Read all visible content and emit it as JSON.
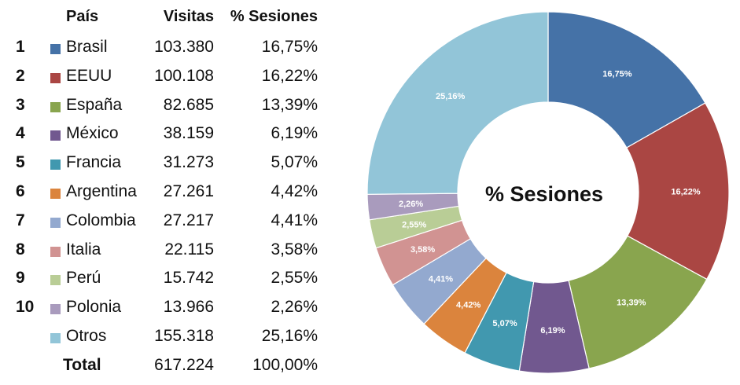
{
  "table": {
    "headers": {
      "country": "País",
      "visits": "Visitas",
      "sessions": "% Sesiones"
    },
    "rows": [
      {
        "rank": "1",
        "country": "Brasil",
        "visits": "103.380",
        "pct": "16,75%",
        "color": "#4572A7"
      },
      {
        "rank": "2",
        "country": "EEUU",
        "visits": "100.108",
        "pct": "16,22%",
        "color": "#AA4643"
      },
      {
        "rank": "3",
        "country": "España",
        "visits": "82.685",
        "pct": "13,39%",
        "color": "#89A54E"
      },
      {
        "rank": "4",
        "country": "México",
        "visits": "38.159",
        "pct": "6,19%",
        "color": "#71588F"
      },
      {
        "rank": "5",
        "country": "Francia",
        "visits": "31.273",
        "pct": "5,07%",
        "color": "#4198AF"
      },
      {
        "rank": "6",
        "country": "Argentina",
        "visits": "27.261",
        "pct": "4,42%",
        "color": "#DB843D"
      },
      {
        "rank": "7",
        "country": "Colombia",
        "visits": "27.217",
        "pct": "4,41%",
        "color": "#93A9CF"
      },
      {
        "rank": "8",
        "country": "Italia",
        "visits": "22.115",
        "pct": "3,58%",
        "color": "#D19392"
      },
      {
        "rank": "9",
        "country": "Perú",
        "visits": "15.742",
        "pct": "2,55%",
        "color": "#B9CD96"
      },
      {
        "rank": "10",
        "country": "Polonia",
        "visits": "13.966",
        "pct": "2,26%",
        "color": "#A99BBD"
      },
      {
        "rank": "",
        "country": "Otros",
        "visits": "155.318",
        "pct": "25,16%",
        "color": "#92C5D8"
      }
    ],
    "total": {
      "label": "Total",
      "visits": "617.224",
      "pct": "100,00%"
    }
  },
  "chart_data": {
    "type": "pie",
    "variant": "donut",
    "title": "% Sesiones",
    "categories": [
      "Brasil",
      "EEUU",
      "España",
      "México",
      "Francia",
      "Argentina",
      "Colombia",
      "Italia",
      "Perú",
      "Polonia",
      "Otros"
    ],
    "values": [
      16.75,
      16.22,
      13.39,
      6.19,
      5.07,
      4.42,
      4.41,
      3.58,
      2.55,
      2.26,
      25.16
    ],
    "labels": [
      "16,75%",
      "16,22%",
      "13,39%",
      "6,19%",
      "5,07%",
      "4,42%",
      "4,41%",
      "3,58%",
      "2,55%",
      "2,26%",
      "25,16%"
    ],
    "colors": [
      "#4572A7",
      "#AA4643",
      "#89A54E",
      "#71588F",
      "#4198AF",
      "#DB843D",
      "#93A9CF",
      "#D19392",
      "#B9CD96",
      "#A99BBD",
      "#92C5D8"
    ]
  }
}
